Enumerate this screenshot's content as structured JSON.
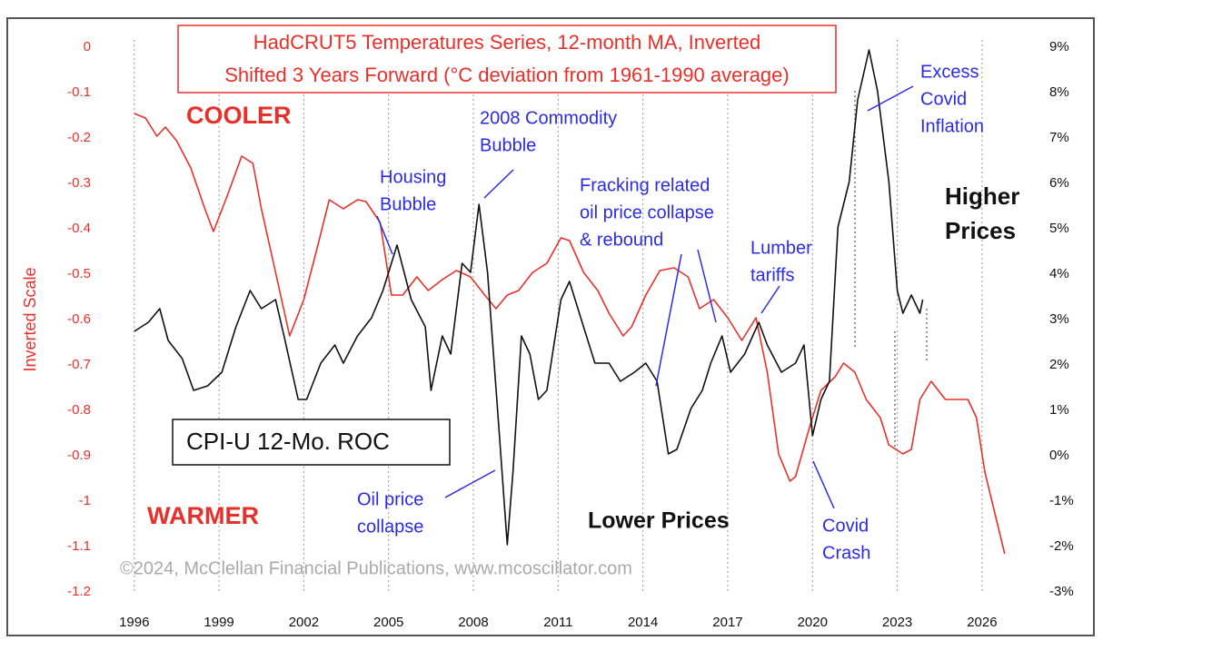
{
  "chart_data": {
    "type": "line",
    "title": "HadCRUT5 Temperatures Series, 12-month MA, Inverted",
    "subtitle": "Shifted 3 Years Forward (°C deviation from 1961-1990 average)",
    "y_label": "Inverted Scale",
    "xlim": [
      1994.85,
      2027.9
    ],
    "xticks": [
      1996,
      1999,
      2002,
      2005,
      2008,
      2011,
      2014,
      2017,
      2020,
      2023,
      2026
    ],
    "ylim": [
      -1.2,
      0
    ],
    "yticks": [
      0,
      -0.1,
      -0.2,
      -0.3,
      -0.4,
      -0.5,
      -0.6,
      -0.7,
      -0.8,
      -0.9,
      -1,
      -1.1,
      -1.2
    ],
    "y2lim": [
      -3,
      9
    ],
    "y2ticks": [
      {
        "value": 9,
        "label": "9%"
      },
      {
        "value": 8,
        "label": "8%"
      },
      {
        "value": 7,
        "label": "7%"
      },
      {
        "value": 6,
        "label": "6%"
      },
      {
        "value": 5,
        "label": "5%"
      },
      {
        "value": 4,
        "label": "4%"
      },
      {
        "value": 3,
        "label": "3%"
      },
      {
        "value": 2,
        "label": "2%"
      },
      {
        "value": 1,
        "label": "1%"
      },
      {
        "value": 0,
        "label": "0%"
      },
      {
        "value": -1,
        "label": "-1%"
      },
      {
        "value": -2,
        "label": "-2%"
      },
      {
        "value": -3,
        "label": "-3%"
      }
    ],
    "grid": "x",
    "series": [
      {
        "color": "#e8302a",
        "x": [
          1996.0,
          1996.4,
          1996.8,
          1997.1,
          1997.5,
          1998.0,
          1998.5,
          1998.8,
          1999.3,
          1999.8,
          2000.2,
          2000.5,
          2001.0,
          2001.5,
          2002.0,
          2002.5,
          2002.9,
          2003.4,
          2003.9,
          2004.2,
          2004.7,
          2005.1,
          2005.5,
          2006.0,
          2006.4,
          2006.9,
          2007.4,
          2007.9,
          2008.4,
          2008.8,
          2009.2,
          2009.6,
          2010.1,
          2010.6,
          2011.1,
          2011.4,
          2011.9,
          2012.4,
          2012.8,
          2013.3,
          2013.6,
          2014.1,
          2014.6,
          2015.1,
          2015.6,
          2016.0,
          2016.5,
          2017.0,
          2017.5,
          2018.0,
          2018.4,
          2018.8,
          2019.2,
          2019.4,
          2019.9,
          2020.3,
          2020.8,
          2021.1,
          2021.5,
          2021.9,
          2022.4,
          2022.7,
          2023.2,
          2023.5,
          2023.8,
          2024.2,
          2024.7,
          2025.1,
          2025.5,
          2025.8,
          2026.1,
          2026.8
        ],
        "values": [
          -0.146,
          -0.156,
          -0.196,
          -0.176,
          -0.206,
          -0.266,
          -0.356,
          -0.406,
          -0.326,
          -0.24,
          -0.256,
          -0.356,
          -0.496,
          -0.636,
          -0.556,
          -0.436,
          -0.336,
          -0.356,
          -0.336,
          -0.34,
          -0.386,
          -0.546,
          -0.546,
          -0.506,
          -0.536,
          -0.512,
          -0.492,
          -0.506,
          -0.546,
          -0.576,
          -0.546,
          -0.536,
          -0.496,
          -0.476,
          -0.42,
          -0.426,
          -0.496,
          -0.536,
          -0.586,
          -0.636,
          -0.616,
          -0.546,
          -0.492,
          -0.486,
          -0.506,
          -0.576,
          -0.556,
          -0.596,
          -0.646,
          -0.596,
          -0.716,
          -0.896,
          -0.956,
          -0.946,
          -0.836,
          -0.756,
          -0.726,
          -0.696,
          -0.716,
          -0.776,
          -0.816,
          -0.876,
          -0.896,
          -0.886,
          -0.776,
          -0.736,
          -0.776,
          -0.776,
          -0.776,
          -0.816,
          -0.936,
          -1.116
        ]
      },
      {
        "name": "CPI-U 12-Mo. ROC",
        "color": "#111111",
        "axis": "y2",
        "x": [
          1996.0,
          1996.5,
          1996.9,
          1997.2,
          1997.7,
          1998.1,
          1998.6,
          1999.1,
          1999.6,
          2000.1,
          2000.5,
          2001.0,
          2001.3,
          2001.8,
          2002.1,
          2002.6,
          2003.1,
          2003.4,
          2003.9,
          2004.4,
          2004.8,
          2005.3,
          2005.8,
          2006.3,
          2006.5,
          2006.9,
          2007.2,
          2007.6,
          2007.9,
          2008.2,
          2008.5,
          2008.9,
          2009.2,
          2009.4,
          2009.7,
          2010.0,
          2010.3,
          2010.6,
          2011.1,
          2011.4,
          2011.8,
          2012.3,
          2012.8,
          2013.2,
          2013.7,
          2014.1,
          2014.5,
          2014.9,
          2015.2,
          2015.7,
          2016.1,
          2016.4,
          2016.8,
          2017.1,
          2017.6,
          2018.1,
          2018.4,
          2018.9,
          2019.4,
          2019.7,
          2020.0,
          2020.3,
          2020.6,
          2020.9,
          2021.3,
          2021.6,
          2022.0,
          2022.3,
          2022.7,
          2023.0,
          2023.2,
          2023.5,
          2023.8,
          2023.9
        ],
        "values": [
          2.74,
          2.94,
          3.24,
          2.54,
          2.14,
          1.44,
          1.54,
          1.84,
          2.84,
          3.64,
          3.24,
          3.44,
          2.64,
          1.24,
          1.24,
          2.04,
          2.44,
          2.04,
          2.64,
          3.04,
          3.64,
          4.64,
          3.44,
          2.84,
          1.44,
          2.64,
          2.24,
          4.24,
          4.04,
          5.54,
          4.04,
          0.64,
          -1.96,
          -0.36,
          2.64,
          2.24,
          1.24,
          1.44,
          3.44,
          3.84,
          3.04,
          2.04,
          2.04,
          1.64,
          1.84,
          2.04,
          1.64,
          0.04,
          0.14,
          1.04,
          1.44,
          2.04,
          2.64,
          1.84,
          2.24,
          2.94,
          2.44,
          1.84,
          2.04,
          2.44,
          0.44,
          1.24,
          1.64,
          5.04,
          6.04,
          7.84,
          8.94,
          8.04,
          6.04,
          3.64,
          3.14,
          3.54,
          3.14,
          3.44
        ]
      }
    ],
    "labels": {
      "cooler": "COOLER",
      "warmer": "WARMER",
      "higher": [
        "Higher",
        "Prices"
      ],
      "lower": "Lower Prices",
      "copyright": "©2024, McClellan Financial Publications, www.mcoscillator.com"
    },
    "annotations": [
      {
        "lines": [
          "Housing",
          "Bubble"
        ]
      },
      {
        "lines": [
          "2008 Commodity",
          "Bubble"
        ]
      },
      {
        "lines": [
          "Fracking related",
          "oil price collapse",
          "& rebound"
        ]
      },
      {
        "lines": [
          "Lumber",
          "tariffs"
        ]
      },
      {
        "lines": [
          "Excess",
          "Covid",
          "Inflation"
        ]
      },
      {
        "lines": [
          "Oil price",
          "collapse"
        ]
      },
      {
        "lines": [
          "Covid",
          "Crash"
        ]
      }
    ]
  }
}
